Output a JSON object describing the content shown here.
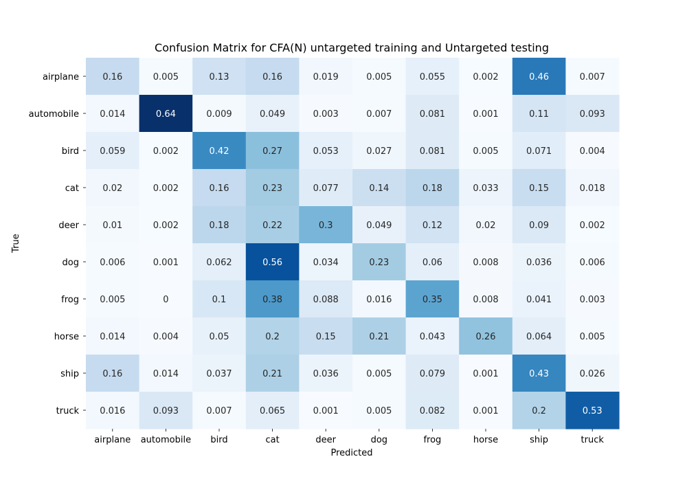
{
  "chart_data": {
    "type": "heatmap",
    "title": "Confusion Matrix for CFA(N) untargeted training and Untargeted testing",
    "xlabel": "Predicted",
    "ylabel": "True",
    "x_categories": [
      "airplane",
      "automobile",
      "bird",
      "cat",
      "deer",
      "dog",
      "frog",
      "horse",
      "ship",
      "truck"
    ],
    "y_categories": [
      "airplane",
      "automobile",
      "bird",
      "cat",
      "deer",
      "dog",
      "frog",
      "horse",
      "ship",
      "truck"
    ],
    "values": [
      [
        0.16,
        0.005,
        0.13,
        0.16,
        0.019,
        0.005,
        0.055,
        0.002,
        0.46,
        0.007
      ],
      [
        0.014,
        0.64,
        0.009,
        0.049,
        0.003,
        0.007,
        0.081,
        0.001,
        0.11,
        0.093
      ],
      [
        0.059,
        0.002,
        0.42,
        0.27,
        0.053,
        0.027,
        0.081,
        0.005,
        0.071,
        0.004
      ],
      [
        0.02,
        0.002,
        0.16,
        0.23,
        0.077,
        0.14,
        0.18,
        0.033,
        0.15,
        0.018
      ],
      [
        0.01,
        0.002,
        0.18,
        0.22,
        0.3,
        0.049,
        0.12,
        0.02,
        0.09,
        0.002
      ],
      [
        0.006,
        0.001,
        0.062,
        0.56,
        0.034,
        0.23,
        0.06,
        0.008,
        0.036,
        0.006
      ],
      [
        0.005,
        0,
        0.1,
        0.38,
        0.088,
        0.016,
        0.35,
        0.008,
        0.041,
        0.003
      ],
      [
        0.014,
        0.004,
        0.05,
        0.2,
        0.15,
        0.21,
        0.043,
        0.26,
        0.064,
        0.005
      ],
      [
        0.16,
        0.014,
        0.037,
        0.21,
        0.036,
        0.005,
        0.079,
        0.001,
        0.43,
        0.026
      ],
      [
        0.016,
        0.093,
        0.007,
        0.065,
        0.001,
        0.005,
        0.082,
        0.001,
        0.2,
        0.53
      ]
    ],
    "colormap": "Blues",
    "value_range": [
      0,
      0.64
    ],
    "colorbar": false,
    "grid": false
  }
}
